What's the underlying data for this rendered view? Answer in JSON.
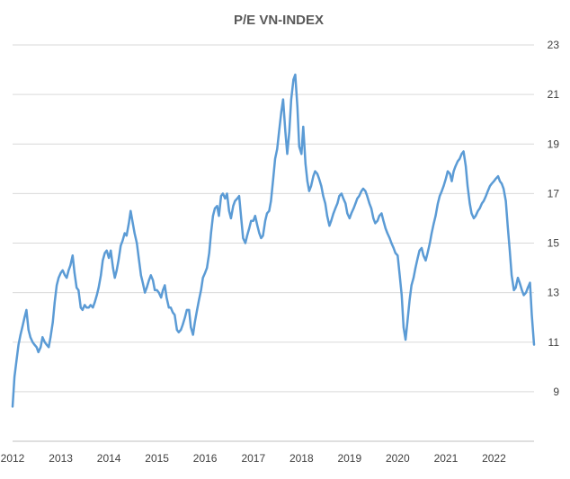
{
  "chart_data": {
    "type": "line",
    "title": "P/E VN-INDEX",
    "xlabel": "",
    "ylabel": "",
    "ylim": [
      7,
      23
    ],
    "xlim": [
      "2012-01-01",
      "2022-11-01"
    ],
    "y_ticks": [
      9,
      11,
      13,
      15,
      17,
      19,
      21,
      23
    ],
    "y_axis_side": "right",
    "x_ticks": [
      "2012",
      "2013",
      "2014",
      "2015",
      "2016",
      "2017",
      "2018",
      "2019",
      "2020",
      "2021",
      "2022"
    ],
    "grid": "horizontal",
    "legend": "none",
    "colors": {
      "line": "#5b9bd5",
      "grid": "#d9d9d9",
      "title": "#595959"
    },
    "series": [
      {
        "x": [
          "2012-01-01",
          "2012-01-15",
          "2012-02-01",
          "2012-02-15",
          "2012-03-01",
          "2012-03-15",
          "2012-04-01",
          "2012-04-15",
          "2012-05-01",
          "2012-05-15",
          "2012-06-01",
          "2012-06-15",
          "2012-07-01",
          "2012-07-15",
          "2012-08-01",
          "2012-08-15",
          "2012-09-01",
          "2012-09-15",
          "2012-10-01",
          "2012-10-15",
          "2012-11-01",
          "2012-11-15",
          "2012-12-01",
          "2012-12-15",
          "2013-01-01",
          "2013-01-15",
          "2013-02-01",
          "2013-02-15",
          "2013-03-01",
          "2013-03-15",
          "2013-04-01",
          "2013-04-15",
          "2013-05-01",
          "2013-05-15",
          "2013-06-01",
          "2013-06-15",
          "2013-07-01",
          "2013-07-15",
          "2013-08-01",
          "2013-08-15",
          "2013-09-01",
          "2013-09-15",
          "2013-10-01",
          "2013-10-15",
          "2013-11-01",
          "2013-11-15",
          "2013-12-01",
          "2013-12-15",
          "2014-01-01",
          "2014-01-15",
          "2014-02-01",
          "2014-02-15",
          "2014-03-01",
          "2014-03-15",
          "2014-04-01",
          "2014-04-15",
          "2014-05-01",
          "2014-05-15",
          "2014-06-01",
          "2014-06-15",
          "2014-07-01",
          "2014-07-15",
          "2014-08-01",
          "2014-08-15",
          "2014-09-01",
          "2014-09-15",
          "2014-10-01",
          "2014-10-15",
          "2014-11-01",
          "2014-11-15",
          "2014-12-01",
          "2014-12-15",
          "2015-01-01",
          "2015-01-15",
          "2015-02-01",
          "2015-02-15",
          "2015-03-01",
          "2015-03-15",
          "2015-04-01",
          "2015-04-15",
          "2015-05-01",
          "2015-05-15",
          "2015-06-01",
          "2015-06-15",
          "2015-07-01",
          "2015-07-15",
          "2015-08-01",
          "2015-08-15",
          "2015-09-01",
          "2015-09-15",
          "2015-10-01",
          "2015-10-15",
          "2015-11-01",
          "2015-11-15",
          "2015-12-01",
          "2015-12-15",
          "2016-01-01",
          "2016-01-15",
          "2016-02-01",
          "2016-02-15",
          "2016-03-01",
          "2016-03-15",
          "2016-04-01",
          "2016-04-15",
          "2016-05-01",
          "2016-05-15",
          "2016-06-01",
          "2016-06-15",
          "2016-07-01",
          "2016-07-15",
          "2016-08-01",
          "2016-08-15",
          "2016-09-01",
          "2016-09-15",
          "2016-10-01",
          "2016-10-15",
          "2016-11-01",
          "2016-11-15",
          "2016-12-01",
          "2016-12-15",
          "2017-01-01",
          "2017-01-15",
          "2017-02-01",
          "2017-02-15",
          "2017-03-01",
          "2017-03-15",
          "2017-04-01",
          "2017-04-15",
          "2017-05-01",
          "2017-05-15",
          "2017-06-01",
          "2017-06-15",
          "2017-07-01",
          "2017-07-15",
          "2017-08-01",
          "2017-08-15",
          "2017-09-01",
          "2017-09-15",
          "2017-10-01",
          "2017-10-15",
          "2017-11-01",
          "2017-11-15",
          "2017-12-01",
          "2017-12-15",
          "2018-01-01",
          "2018-01-15",
          "2018-02-01",
          "2018-02-15",
          "2018-03-01",
          "2018-03-15",
          "2018-04-01",
          "2018-04-15",
          "2018-05-01",
          "2018-05-15",
          "2018-06-01",
          "2018-06-15",
          "2018-07-01",
          "2018-07-15",
          "2018-08-01",
          "2018-08-15",
          "2018-09-01",
          "2018-09-15",
          "2018-10-01",
          "2018-10-15",
          "2018-11-01",
          "2018-11-15",
          "2018-12-01",
          "2018-12-15",
          "2019-01-01",
          "2019-01-15",
          "2019-02-01",
          "2019-02-15",
          "2019-03-01",
          "2019-03-15",
          "2019-04-01",
          "2019-04-15",
          "2019-05-01",
          "2019-05-15",
          "2019-06-01",
          "2019-06-15",
          "2019-07-01",
          "2019-07-15",
          "2019-08-01",
          "2019-08-15",
          "2019-09-01",
          "2019-09-15",
          "2019-10-01",
          "2019-10-15",
          "2019-11-01",
          "2019-11-15",
          "2019-12-01",
          "2019-12-15",
          "2020-01-01",
          "2020-01-15",
          "2020-02-01",
          "2020-02-15",
          "2020-03-01",
          "2020-03-15",
          "2020-04-01",
          "2020-04-15",
          "2020-05-01",
          "2020-05-15",
          "2020-06-01",
          "2020-06-15",
          "2020-07-01",
          "2020-07-15",
          "2020-08-01",
          "2020-08-15",
          "2020-09-01",
          "2020-09-15",
          "2020-10-01",
          "2020-10-15",
          "2020-11-01",
          "2020-11-15",
          "2020-12-01",
          "2020-12-15",
          "2021-01-01",
          "2021-01-15",
          "2021-02-01",
          "2021-02-15",
          "2021-03-01",
          "2021-03-15",
          "2021-04-01",
          "2021-04-15",
          "2021-05-01",
          "2021-05-15",
          "2021-06-01",
          "2021-06-15",
          "2021-07-01",
          "2021-07-15",
          "2021-08-01",
          "2021-08-15",
          "2021-09-01",
          "2021-09-15",
          "2021-10-01",
          "2021-10-15",
          "2021-11-01",
          "2021-11-15",
          "2021-12-01",
          "2021-12-15",
          "2022-01-01",
          "2022-01-15",
          "2022-02-01",
          "2022-02-15",
          "2022-03-01",
          "2022-03-15",
          "2022-04-01",
          "2022-04-15",
          "2022-05-01",
          "2022-05-15",
          "2022-06-01",
          "2022-06-15",
          "2022-07-01",
          "2022-07-15",
          "2022-08-01",
          "2022-08-15",
          "2022-09-01",
          "2022-09-15",
          "2022-10-01",
          "2022-10-15",
          "2022-11-01"
        ],
        "values": [
          8.4,
          9.6,
          10.3,
          10.9,
          11.3,
          11.6,
          12.0,
          12.3,
          11.5,
          11.2,
          11.0,
          10.9,
          10.8,
          10.6,
          10.8,
          11.2,
          11.0,
          10.9,
          10.8,
          11.2,
          11.8,
          12.6,
          13.3,
          13.6,
          13.8,
          13.9,
          13.7,
          13.6,
          13.9,
          14.1,
          14.5,
          13.8,
          13.2,
          13.1,
          12.4,
          12.3,
          12.5,
          12.4,
          12.4,
          12.5,
          12.4,
          12.6,
          12.9,
          13.2,
          13.7,
          14.3,
          14.6,
          14.7,
          14.4,
          14.7,
          14.0,
          13.6,
          13.9,
          14.3,
          14.9,
          15.1,
          15.4,
          15.3,
          15.8,
          16.3,
          15.8,
          15.4,
          15.0,
          14.4,
          13.7,
          13.4,
          13.0,
          13.2,
          13.5,
          13.7,
          13.5,
          13.1,
          13.1,
          13.0,
          12.8,
          13.1,
          13.3,
          12.8,
          12.4,
          12.4,
          12.2,
          12.1,
          11.5,
          11.4,
          11.5,
          11.7,
          12.0,
          12.3,
          12.3,
          11.6,
          11.3,
          11.8,
          12.3,
          12.7,
          13.1,
          13.6,
          13.8,
          14.0,
          14.6,
          15.4,
          16.1,
          16.4,
          16.5,
          16.1,
          16.9,
          17.0,
          16.8,
          17.0,
          16.3,
          16.0,
          16.5,
          16.7,
          16.8,
          16.9,
          16.0,
          15.2,
          15.0,
          15.3,
          15.6,
          15.9,
          15.9,
          16.1,
          15.7,
          15.4,
          15.2,
          15.3,
          15.9,
          16.2,
          16.3,
          16.7,
          17.6,
          18.4,
          18.8,
          19.5,
          20.3,
          20.8,
          19.5,
          18.6,
          19.5,
          20.8,
          21.6,
          21.8,
          20.5,
          18.9,
          18.6,
          19.7,
          18.2,
          17.5,
          17.1,
          17.3,
          17.7,
          17.9,
          17.8,
          17.6,
          17.3,
          16.9,
          16.6,
          16.1,
          15.7,
          15.9,
          16.2,
          16.4,
          16.6,
          16.9,
          17.0,
          16.8,
          16.6,
          16.2,
          16.0,
          16.2,
          16.4,
          16.6,
          16.8,
          16.9,
          17.1,
          17.2,
          17.1,
          16.9,
          16.6,
          16.4,
          16.0,
          15.8,
          15.9,
          16.1,
          16.2,
          15.9,
          15.6,
          15.4,
          15.2,
          15.0,
          14.8,
          14.6,
          14.5,
          13.8,
          12.9,
          11.6,
          11.1,
          11.8,
          12.7,
          13.3,
          13.6,
          14.0,
          14.4,
          14.7,
          14.8,
          14.5,
          14.3,
          14.6,
          15.0,
          15.4,
          15.8,
          16.1,
          16.6,
          16.9,
          17.1,
          17.3,
          17.6,
          17.9,
          17.8,
          17.5,
          17.9,
          18.1,
          18.3,
          18.4,
          18.6,
          18.7,
          18.1,
          17.3,
          16.6,
          16.2,
          16.0,
          16.1,
          16.3,
          16.4,
          16.6,
          16.7,
          16.9,
          17.1,
          17.3,
          17.4,
          17.5,
          17.6,
          17.7,
          17.5,
          17.4,
          17.2,
          16.7,
          15.7,
          14.7,
          13.7,
          13.1,
          13.2,
          13.6,
          13.4,
          13.1,
          12.9,
          13.0,
          13.2,
          13.4,
          12.1,
          10.9
        ]
      }
    ]
  }
}
